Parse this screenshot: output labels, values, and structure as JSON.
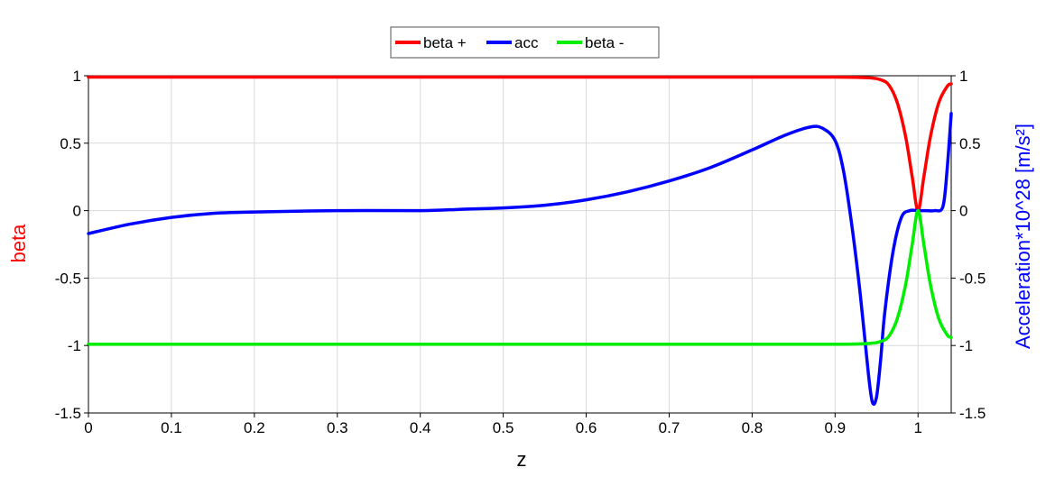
{
  "chart_data": {
    "type": "line",
    "title": "",
    "xlabel": "z",
    "ylabel": "beta",
    "ylabel_right": "Acceleration*10^28 [m/s²]",
    "xlim": [
      0,
      1.04
    ],
    "ylim": [
      -1.5,
      1
    ],
    "ylim_right": [
      -1.5,
      1
    ],
    "x_ticks": [
      "0",
      "0.1",
      "0.2",
      "0.3",
      "0.4",
      "0.5",
      "0.6",
      "0.7",
      "0.8",
      "0.9",
      "1"
    ],
    "y_ticks": [
      "1",
      "0.5",
      "0",
      "-0.5",
      "-1",
      "-1.5"
    ],
    "y_ticks_right": [
      "1",
      "0.5",
      "0",
      "-0.5",
      "-1",
      "-1.5"
    ],
    "grid": true,
    "legend_position": "top-center",
    "colors": {
      "ylabel": "#ff0000",
      "ylabel_right": "#0000ff"
    },
    "series": [
      {
        "name": "beta +",
        "color": "#ff0000",
        "axis": "left",
        "x": [
          0,
          0.1,
          0.2,
          0.3,
          0.4,
          0.5,
          0.6,
          0.7,
          0.8,
          0.9,
          0.94,
          0.955,
          0.965,
          0.975,
          0.985,
          0.993,
          1.0,
          1.007,
          1.015,
          1.025,
          1.035,
          1.04
        ],
        "y": [
          0.99,
          0.99,
          0.99,
          0.99,
          0.99,
          0.99,
          0.99,
          0.99,
          0.99,
          0.99,
          0.985,
          0.97,
          0.93,
          0.8,
          0.55,
          0.25,
          0.0,
          0.25,
          0.55,
          0.8,
          0.92,
          0.94
        ]
      },
      {
        "name": "acc",
        "color": "#0000ff",
        "axis": "right",
        "x": [
          0,
          0.05,
          0.1,
          0.15,
          0.2,
          0.3,
          0.4,
          0.45,
          0.5,
          0.55,
          0.6,
          0.65,
          0.7,
          0.75,
          0.8,
          0.84,
          0.87,
          0.885,
          0.9,
          0.91,
          0.92,
          0.93,
          0.94,
          0.945,
          0.95,
          0.955,
          0.96,
          0.97,
          0.98,
          0.99,
          1.0,
          1.01,
          1.02,
          1.03,
          1.035,
          1.04
        ],
        "y": [
          -0.17,
          -0.1,
          -0.05,
          -0.02,
          -0.01,
          0.0,
          0.0,
          0.01,
          0.02,
          0.04,
          0.08,
          0.14,
          0.22,
          0.32,
          0.45,
          0.56,
          0.62,
          0.61,
          0.52,
          0.3,
          -0.1,
          -0.6,
          -1.2,
          -1.42,
          -1.38,
          -1.1,
          -0.75,
          -0.3,
          -0.05,
          0.0,
          0.0,
          0.0,
          0.0,
          0.03,
          0.3,
          0.72
        ]
      },
      {
        "name": "beta -",
        "color": "#00ee00",
        "axis": "left",
        "x": [
          0,
          0.1,
          0.2,
          0.3,
          0.4,
          0.5,
          0.6,
          0.7,
          0.8,
          0.9,
          0.94,
          0.955,
          0.965,
          0.975,
          0.985,
          0.993,
          1.0,
          1.007,
          1.015,
          1.025,
          1.035,
          1.04
        ],
        "y": [
          -0.99,
          -0.99,
          -0.99,
          -0.99,
          -0.99,
          -0.99,
          -0.99,
          -0.99,
          -0.99,
          -0.99,
          -0.985,
          -0.97,
          -0.93,
          -0.8,
          -0.55,
          -0.25,
          0.0,
          -0.25,
          -0.55,
          -0.8,
          -0.92,
          -0.94
        ]
      }
    ]
  }
}
